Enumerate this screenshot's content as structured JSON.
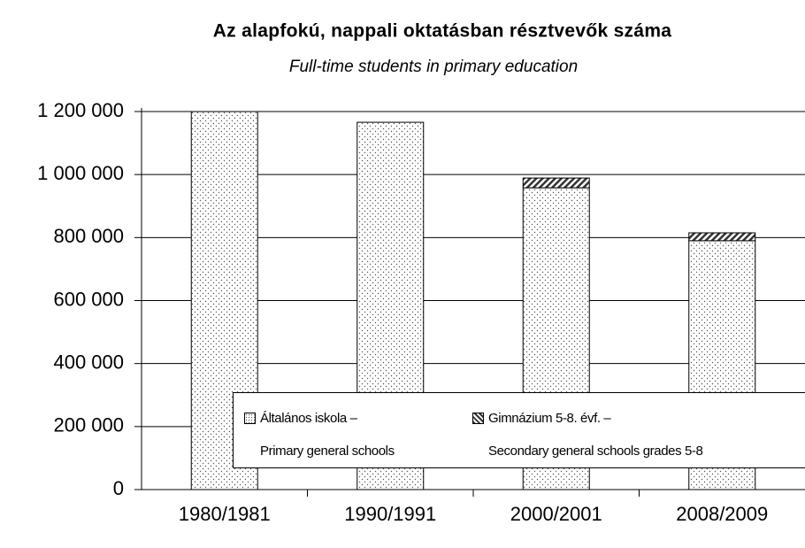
{
  "chart_data": {
    "type": "stacked_bar",
    "title": "Az alapfokú, nappali oktatásban résztvevők száma",
    "subtitle": "Full-time students  in primary education",
    "categories": [
      "1980/1981",
      "1990/1991",
      "2000/2001",
      "2008/2009"
    ],
    "series": [
      {
        "name": "Általános iskola –\nPrimary general schools",
        "color": "#ffffff",
        "pattern": "dots",
        "values": [
          1200000,
          1166000,
          958000,
          790000
        ]
      },
      {
        "name": "Gimnázium 5-8. évf. –\nSecondary general schools grades 5-8",
        "color": "#ffffff",
        "pattern": "hatch",
        "values": [
          0,
          0,
          31000,
          25000
        ]
      }
    ],
    "ylim": [
      0,
      1200000
    ],
    "yticks": [
      0,
      {
        "value": 200000,
        "label": "200 000"
      },
      {
        "value": 400000,
        "label": "400 000"
      },
      {
        "value": 600000,
        "label": "600 000"
      },
      {
        "value": 800000,
        "label": "800 000"
      },
      {
        "value": 1000000,
        "label": "1 000 000"
      },
      {
        "value": 1200000,
        "label": "1 200 000"
      }
    ],
    "grid": true
  }
}
